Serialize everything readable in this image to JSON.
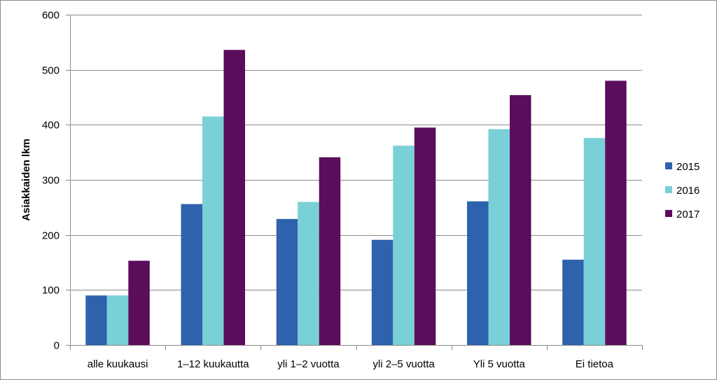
{
  "chart_data": {
    "type": "bar",
    "title": "",
    "xlabel": "",
    "ylabel": "Asiakkaiden lkm",
    "ylim": [
      0,
      600
    ],
    "yticks": [
      0,
      100,
      200,
      300,
      400,
      500,
      600
    ],
    "grid": true,
    "legend_position": "right",
    "categories": [
      "alle kuukausi",
      "1–12 kuukautta",
      "yli 1–2 vuotta",
      "yli 2–5 vuotta",
      "Yli 5 vuotta",
      "Ei tietoa"
    ],
    "series": [
      {
        "name": "2015",
        "color": "#2e62ad",
        "values": [
          90,
          256,
          229,
          191,
          261,
          155
        ]
      },
      {
        "name": "2016",
        "color": "#7ad0d7",
        "values": [
          90,
          415,
          260,
          362,
          392,
          376
        ]
      },
      {
        "name": "2017",
        "color": "#5a0d5a",
        "values": [
          153,
          536,
          341,
          395,
          454,
          480
        ]
      }
    ]
  }
}
